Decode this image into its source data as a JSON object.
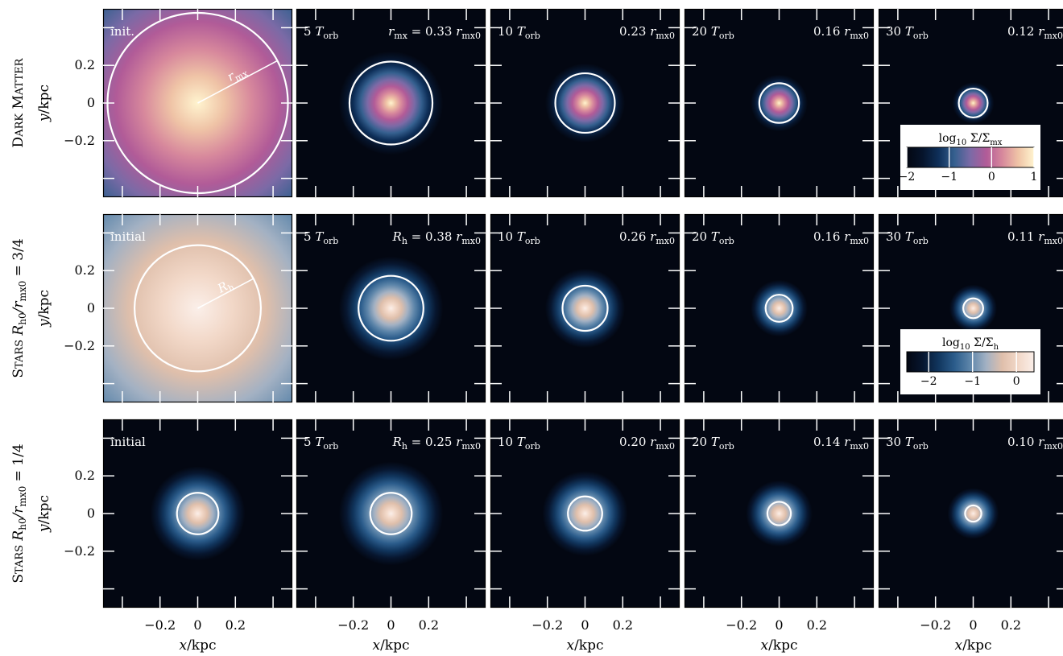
{
  "colors": {
    "cmap_dm": [
      "#030712",
      "#06142b",
      "#0e2f59",
      "#35608f",
      "#7b6aa6",
      "#b15b98",
      "#d7889c",
      "#efc3a6",
      "#fff4cf"
    ],
    "cmap_stars": [
      "#030712",
      "#07162f",
      "#11365e",
      "#2b5c8b",
      "#5e86aa",
      "#a3b1c3",
      "#dfbfab",
      "#f2d8c8",
      "#fbefe9"
    ],
    "circle": "#ffffff"
  },
  "axes": {
    "xlabel": "x/kpc",
    "ylabel": "y/kpc",
    "xticks": [
      "-0.2",
      "0",
      "0.2"
    ],
    "yticks": [
      "0.2",
      "0",
      "-0.2"
    ]
  },
  "rows": [
    {
      "label_main": "Dark Matter",
      "label_sub": "",
      "colormap": "dm",
      "panels": [
        {
          "label": "init.",
          "value": "",
          "circle_r_rel": 1.0,
          "core_r_rel": 0.0,
          "initial": true,
          "radius_label": "r_mx"
        },
        {
          "label": "5 T_orb",
          "value": "r_mx = 0.33 r_mx0",
          "circle_r_rel": 0.46,
          "core_r_rel": 0.55
        },
        {
          "label": "10 T_orb",
          "value": "0.23 r_mx0",
          "circle_r_rel": 0.33,
          "core_r_rel": 0.42
        },
        {
          "label": "20 T_orb",
          "value": "0.16 r_mx0",
          "circle_r_rel": 0.22,
          "core_r_rel": 0.3
        },
        {
          "label": "30 T_orb",
          "value": "0.12 r_mx0",
          "circle_r_rel": 0.16,
          "core_r_rel": 0.22
        }
      ],
      "colorbar": {
        "title": "log10 Σ/Σmx",
        "ticks": [
          "−2",
          "−1",
          "0",
          "1"
        ],
        "range": [
          -2,
          1
        ]
      }
    },
    {
      "label_main": "Stars",
      "label_sub": "R_h0/r_mx0 = 3/4",
      "colormap": "stars",
      "panels": [
        {
          "label": "initial",
          "value": "",
          "circle_r_rel": 0.7,
          "core_r_rel": 1.0,
          "initial": true,
          "radius_label": "R_h"
        },
        {
          "label": "5 T_orb",
          "value": "R_h = 0.38 r_mx0",
          "circle_r_rel": 0.36,
          "core_r_rel": 0.55
        },
        {
          "label": "10 T_orb",
          "value": "0.26 r_mx0",
          "circle_r_rel": 0.25,
          "core_r_rel": 0.42
        },
        {
          "label": "20 T_orb",
          "value": "0.16 r_mx0",
          "circle_r_rel": 0.15,
          "core_r_rel": 0.3
        },
        {
          "label": "30 T_orb",
          "value": "0.11 r_mx0",
          "circle_r_rel": 0.11,
          "core_r_rel": 0.25
        }
      ],
      "colorbar": {
        "title": "log10 Σ/Σh",
        "ticks": [
          "−2",
          "−1",
          "0"
        ],
        "range": [
          -2.5,
          0.4
        ]
      }
    },
    {
      "label_main": "Stars",
      "label_sub": "R_h0/r_mx0 = 1/4",
      "colormap": "stars",
      "panels": [
        {
          "label": "initial",
          "value": "",
          "circle_r_rel": 0.23,
          "core_r_rel": 0.5
        },
        {
          "label": "5 T_orb",
          "value": "R_h = 0.25 r_mx0",
          "circle_r_rel": 0.23,
          "core_r_rel": 0.55
        },
        {
          "label": "10 T_orb",
          "value": "0.20 r_mx0",
          "circle_r_rel": 0.19,
          "core_r_rel": 0.45
        },
        {
          "label": "20 T_orb",
          "value": "0.14 r_mx0",
          "circle_r_rel": 0.13,
          "core_r_rel": 0.35
        },
        {
          "label": "30 T_orb",
          "value": "0.10 r_mx0",
          "circle_r_rel": 0.09,
          "core_r_rel": 0.27
        }
      ]
    }
  ],
  "chart_data": {
    "type": "heatmap",
    "title": "",
    "xlabel": "x/kpc",
    "ylabel": "y/kpc",
    "xticks": [
      -0.2,
      0,
      0.2
    ],
    "yticks": [
      0.2,
      0,
      -0.2
    ],
    "xlim": [
      -0.5,
      0.5
    ],
    "ylim": [
      -0.5,
      0.5
    ],
    "times_T_orb": [
      0,
      5,
      10,
      20,
      30
    ],
    "series": [
      {
        "name": "Dark Matter",
        "quantity": "r_mx / r_mx0",
        "values": [
          1.0,
          0.33,
          0.23,
          0.16,
          0.12
        ],
        "colorbar_range": [
          -2,
          1
        ]
      },
      {
        "name": "Stars R_h0/r_mx0 = 3/4",
        "quantity": "R_h / r_mx0",
        "values": [
          0.75,
          0.38,
          0.26,
          0.16,
          0.11
        ],
        "colorbar_range": [
          -2.5,
          0.4
        ]
      },
      {
        "name": "Stars R_h0/r_mx0 = 1/4",
        "quantity": "R_h / r_mx0",
        "values": [
          0.25,
          0.25,
          0.2,
          0.14,
          0.1
        ]
      }
    ],
    "grid": false
  }
}
